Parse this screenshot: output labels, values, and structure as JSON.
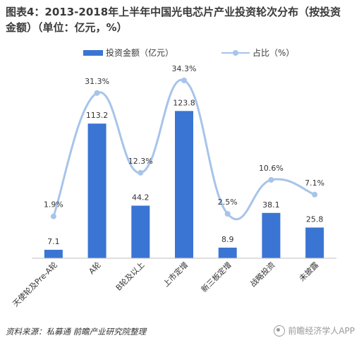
{
  "title": {
    "line1": "图表4：2013-2018年上半年中国光电芯片产业投资轮次分布（按投资",
    "line2": "金额）（单位：亿元，%）"
  },
  "legend": {
    "bar_label": "投资金额（亿元）",
    "line_label": "占比（%）"
  },
  "footer": {
    "source": "资料来源：私募通  前瞻产业研究院整理"
  },
  "watermark": {
    "text": "前瞻经济学人APP"
  },
  "colors": {
    "bar": "#3a75d4",
    "line": "#a7c4ea"
  },
  "chart_data": {
    "type": "bar",
    "categories": [
      "天使轮及Pre-A轮",
      "A轮",
      "B轮及以上",
      "上市定增",
      "新三板定增",
      "战略投资",
      "未披露"
    ],
    "series": [
      {
        "name": "投资金额（亿元）",
        "type": "bar",
        "values": [
          7.1,
          113.2,
          44.2,
          123.8,
          8.9,
          38.1,
          25.8
        ],
        "labels": [
          "7.1",
          "113.2",
          "44.2",
          "123.8",
          "8.9",
          "38.1",
          "25.8"
        ]
      },
      {
        "name": "占比（%）",
        "type": "line",
        "smooth": true,
        "values": [
          1.9,
          31.3,
          12.3,
          34.3,
          2.5,
          10.6,
          7.1
        ],
        "labels": [
          "1.9%",
          "31.3%",
          "12.3%",
          "34.3%",
          "2.5%",
          "10.6%",
          "7.1%"
        ]
      }
    ],
    "bar_range": [
      0,
      140
    ],
    "line_range": [
      0,
      38
    ],
    "grid": false,
    "legend_position": "top"
  }
}
